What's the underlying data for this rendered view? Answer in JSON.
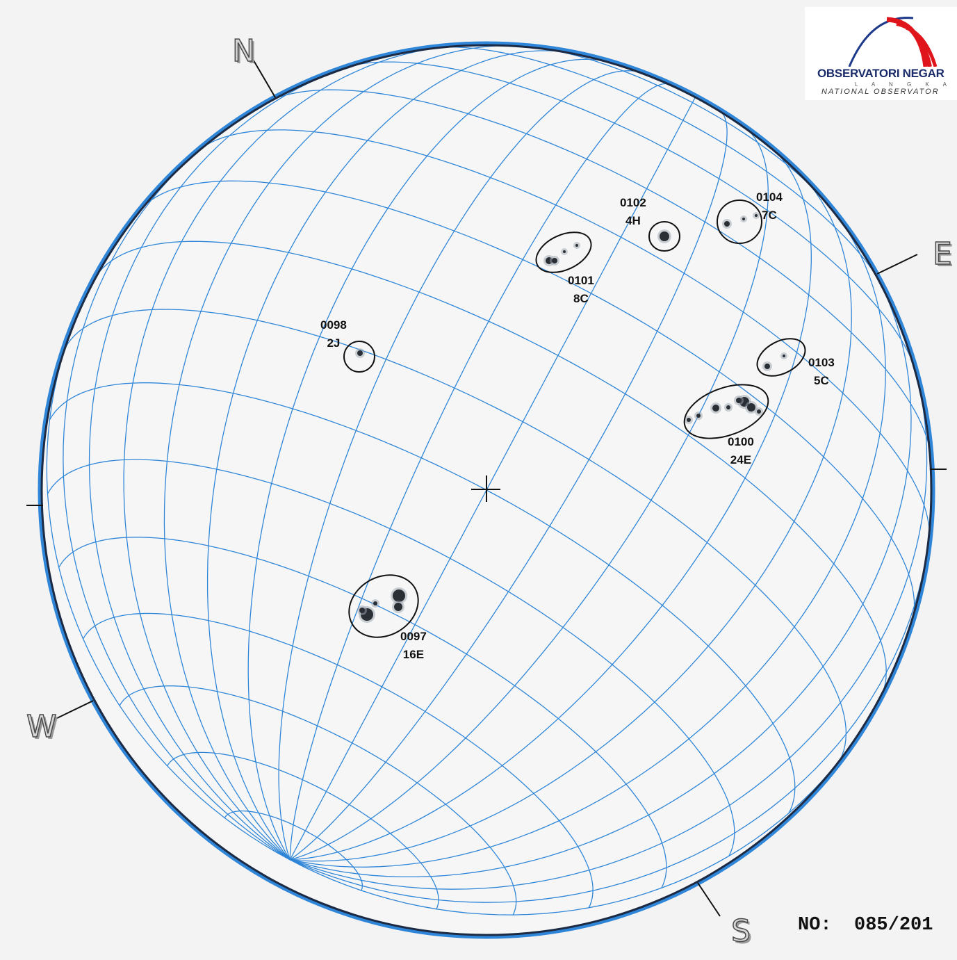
{
  "logo": {
    "name": "OBSERVATORI NEGAR",
    "subtitle": "L A N G K A W I",
    "tagline": "NATIONAL OBSERVATOR",
    "colors": {
      "arc_red": "#e0141b",
      "arc_blue": "#1e3a8a"
    }
  },
  "compass": {
    "north": "N",
    "south": "S",
    "east": "E",
    "west": "W"
  },
  "disk_colors": {
    "grid": "#2f86d8",
    "limb": "#1c2a44",
    "background": "#f3f3f3"
  },
  "regions": [
    {
      "id": "0097",
      "spots": "16E"
    },
    {
      "id": "0098",
      "spots": "2J"
    },
    {
      "id": "0100",
      "spots": "24E"
    },
    {
      "id": "0101",
      "spots": "8C"
    },
    {
      "id": "0102",
      "spots": "4H"
    },
    {
      "id": "0103",
      "spots": "5C"
    },
    {
      "id": "0104",
      "spots": "7C"
    }
  ],
  "report": {
    "number": "NO:  085/201"
  }
}
